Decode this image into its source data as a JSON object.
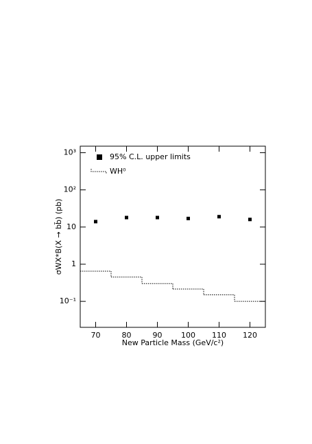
{
  "chart_data": {
    "type": "scatter",
    "x_label": "New Particle Mass (GeV/c²)",
    "y_label": "σWX*B(X → bb̄) (pb)",
    "xlim": [
      65,
      125
    ],
    "xticks": [
      70,
      80,
      90,
      100,
      110,
      120
    ],
    "ylim": [
      0.02,
      1500
    ],
    "ylog": true,
    "yticks": [
      {
        "value": 0.1,
        "label": "10⁻¹"
      },
      1,
      10,
      {
        "value": 100,
        "label": "10²"
      },
      {
        "value": 1000,
        "label": "10³"
      }
    ],
    "series": [
      {
        "name": "95% C.L. upper limits",
        "marker": "square",
        "color": "#000000",
        "x": [
          70,
          80,
          90,
          100,
          110,
          120
        ],
        "values": [
          14,
          18,
          18,
          17,
          19,
          16
        ]
      },
      {
        "name": "WH⁰",
        "style": "dotted-step",
        "color": "#000000",
        "bins": [
          65,
          75,
          85,
          95,
          105,
          115,
          125
        ],
        "values": [
          0.65,
          0.45,
          0.3,
          0.215,
          0.15,
          0.1
        ]
      }
    ]
  }
}
